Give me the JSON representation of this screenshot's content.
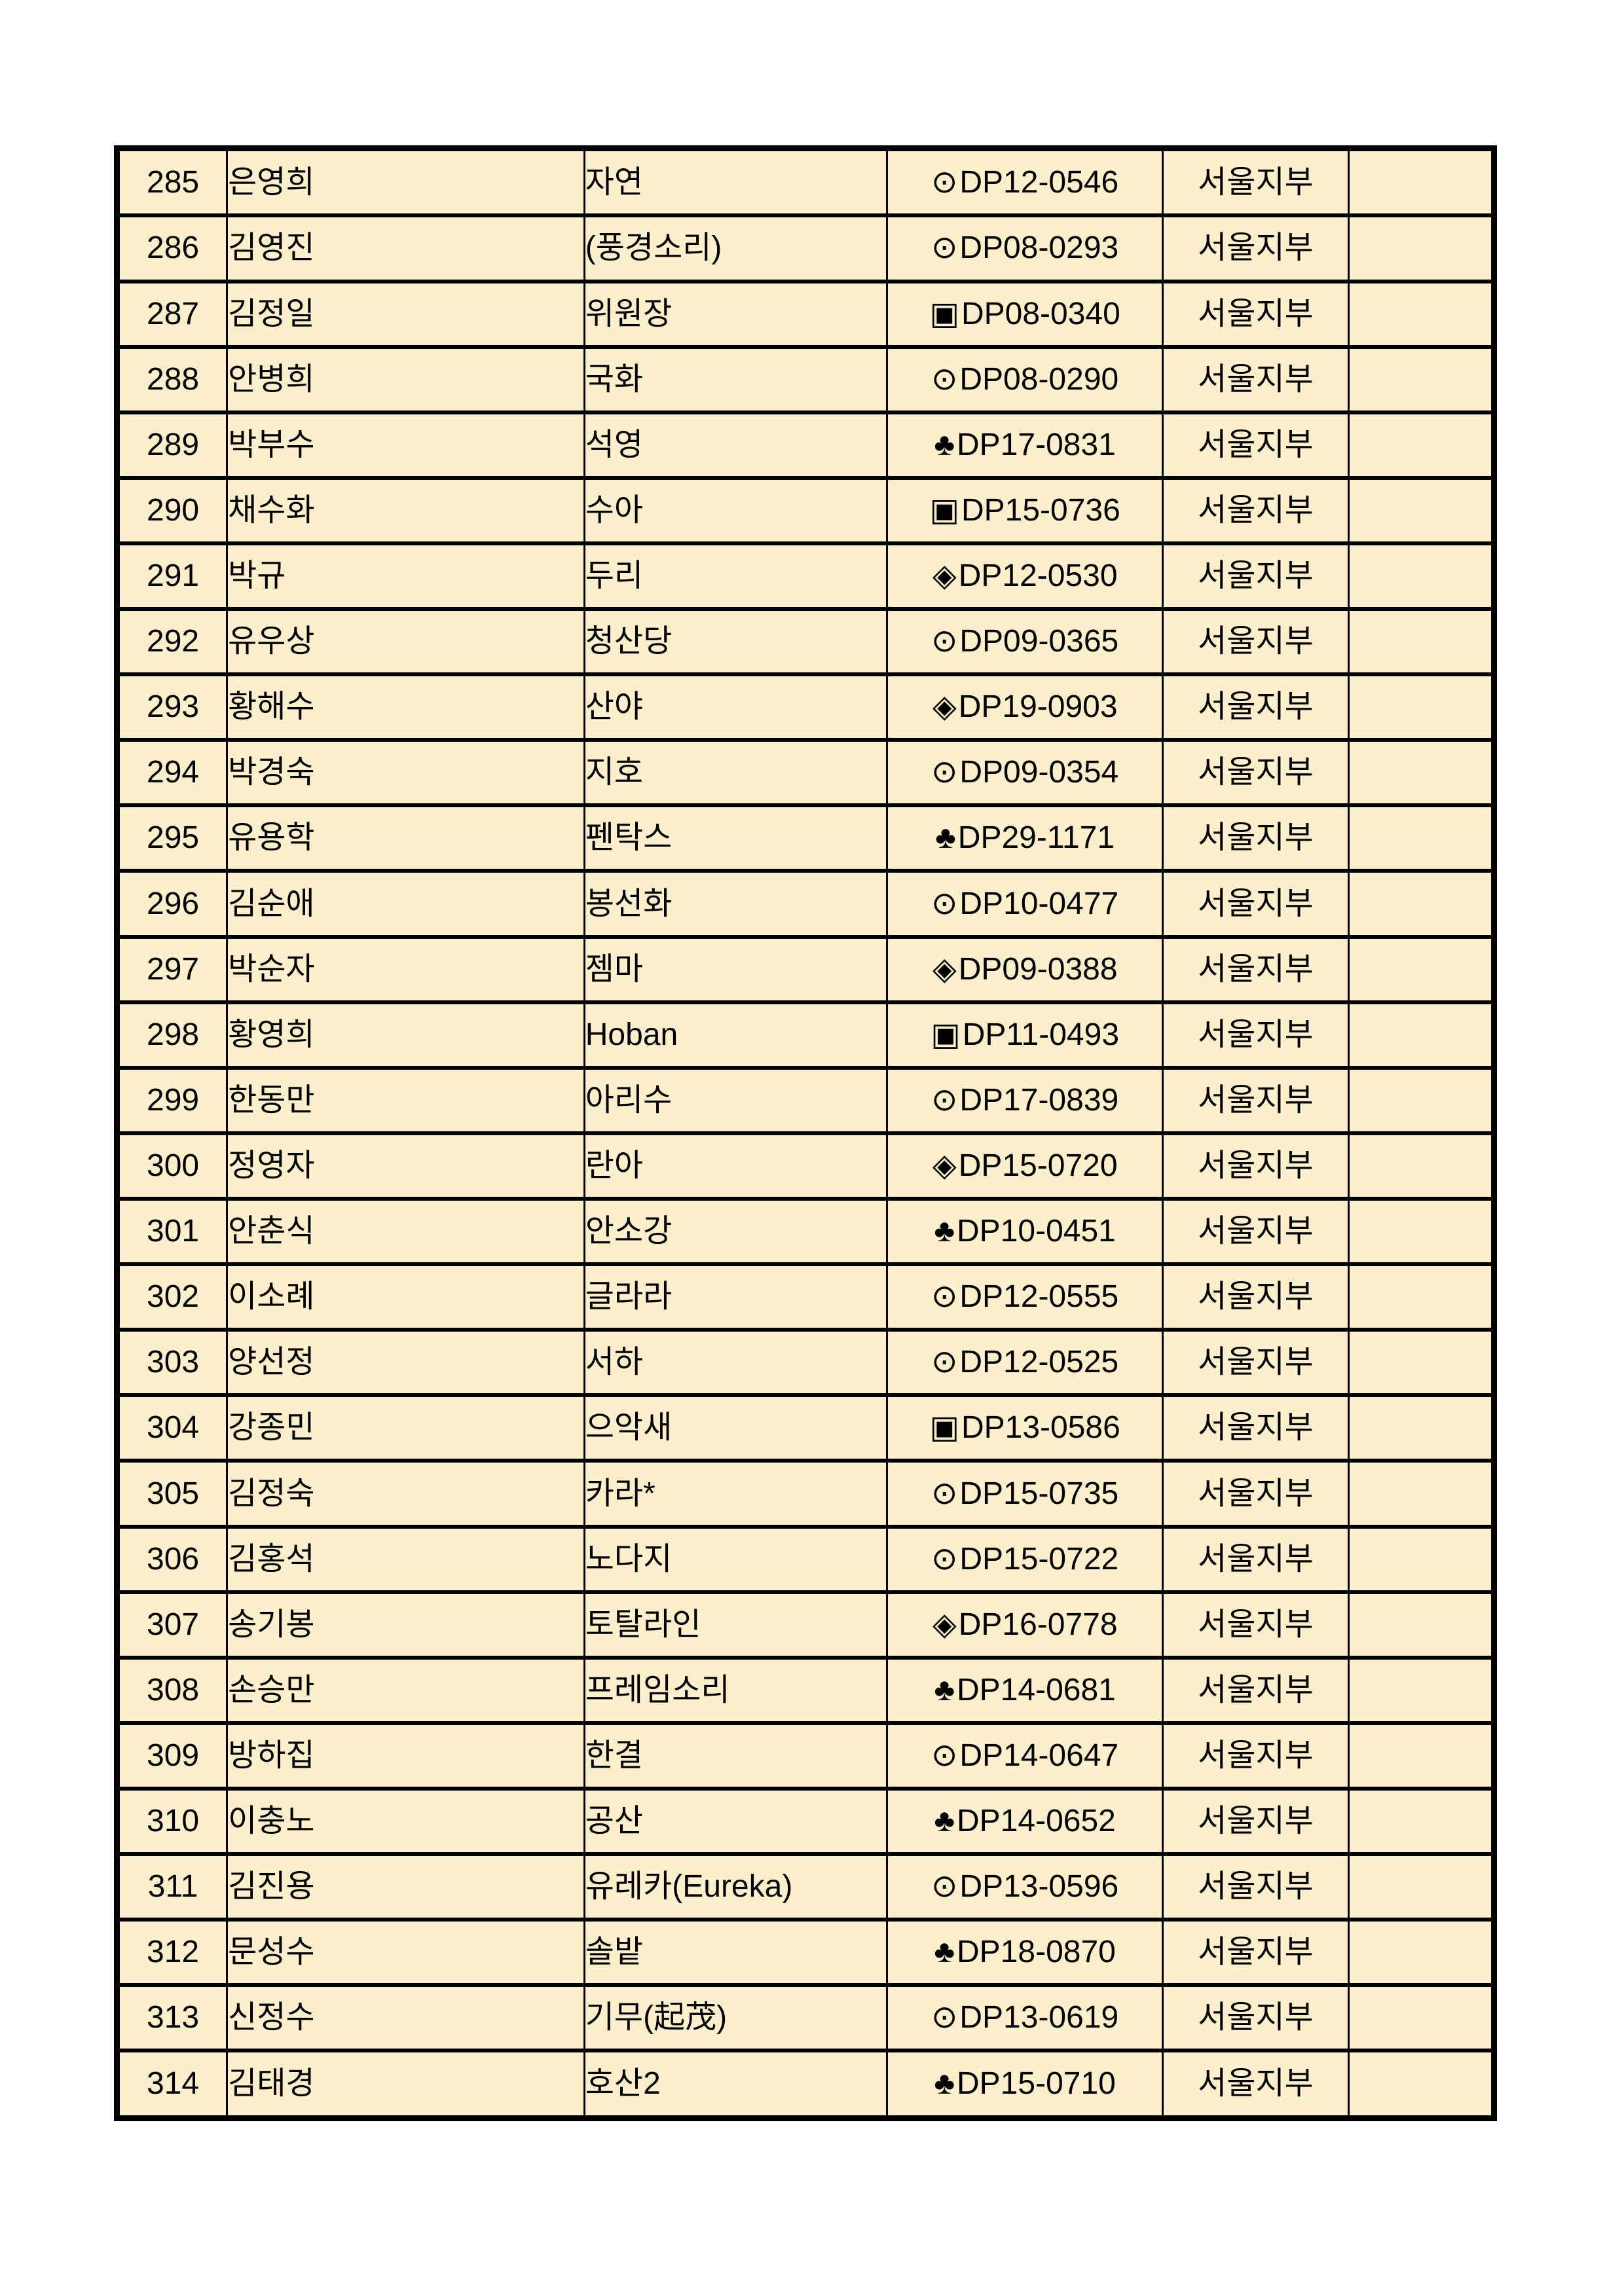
{
  "page": {
    "background_color": "#FFFFFF",
    "table_cell_color": "#FBF0CB",
    "table_border_color": "#000000",
    "grade_marks_used": [
      "⊙",
      "▣",
      "♣",
      "◈"
    ]
  },
  "table": {
    "rows": [
      {
        "no": "285",
        "name": "은영희",
        "alias": "자연",
        "mark": "⊙",
        "code": "DP12-0546",
        "branch": "서울지부",
        "note": ""
      },
      {
        "no": "286",
        "name": "김영진",
        "alias": "(풍경소리)",
        "mark": "⊙",
        "code": "DP08-0293",
        "branch": "서울지부",
        "note": ""
      },
      {
        "no": "287",
        "name": "김정일",
        "alias": "위원장",
        "mark": "▣",
        "code": "DP08-0340",
        "branch": "서울지부",
        "note": ""
      },
      {
        "no": "288",
        "name": "안병희",
        "alias": "국화",
        "mark": "⊙",
        "code": "DP08-0290",
        "branch": "서울지부",
        "note": ""
      },
      {
        "no": "289",
        "name": "박부수",
        "alias": "석영",
        "mark": "♣",
        "code": "DP17-0831",
        "branch": "서울지부",
        "note": ""
      },
      {
        "no": "290",
        "name": "채수화",
        "alias": "수아",
        "mark": "▣",
        "code": "DP15-0736",
        "branch": "서울지부",
        "note": ""
      },
      {
        "no": "291",
        "name": "박규",
        "alias": "두리",
        "mark": "◈",
        "code": "DP12-0530",
        "branch": "서울지부",
        "note": ""
      },
      {
        "no": "292",
        "name": "유우상",
        "alias": "청산당",
        "mark": "⊙",
        "code": "DP09-0365",
        "branch": "서울지부",
        "note": ""
      },
      {
        "no": "293",
        "name": "황해수",
        "alias": "산야",
        "mark": "◈",
        "code": "DP19-0903",
        "branch": "서울지부",
        "note": ""
      },
      {
        "no": "294",
        "name": "박경숙",
        "alias": "지호",
        "mark": "⊙",
        "code": "DP09-0354",
        "branch": "서울지부",
        "note": ""
      },
      {
        "no": "295",
        "name": "유용학",
        "alias": "펜탁스",
        "mark": "♣",
        "code": "DP29-1171",
        "branch": "서울지부",
        "note": ""
      },
      {
        "no": "296",
        "name": "김순애",
        "alias": "봉선화",
        "mark": "⊙",
        "code": "DP10-0477",
        "branch": "서울지부",
        "note": ""
      },
      {
        "no": "297",
        "name": "박순자",
        "alias": "젬마",
        "mark": "◈",
        "code": "DP09-0388",
        "branch": "서울지부",
        "note": ""
      },
      {
        "no": "298",
        "name": "황영희",
        "alias": "Hoban",
        "mark": "▣",
        "code": "DP11-0493",
        "branch": "서울지부",
        "note": ""
      },
      {
        "no": "299",
        "name": "한동만",
        "alias": "아리수",
        "mark": "⊙",
        "code": "DP17-0839",
        "branch": "서울지부",
        "note": ""
      },
      {
        "no": "300",
        "name": "정영자",
        "alias": "란아",
        "mark": "◈",
        "code": "DP15-0720",
        "branch": "서울지부",
        "note": ""
      },
      {
        "no": "301",
        "name": "안춘식",
        "alias": "안소강",
        "mark": "♣",
        "code": "DP10-0451",
        "branch": "서울지부",
        "note": ""
      },
      {
        "no": "302",
        "name": "이소례",
        "alias": "글라라",
        "mark": "⊙",
        "code": "DP12-0555",
        "branch": "서울지부",
        "note": ""
      },
      {
        "no": "303",
        "name": "양선정",
        "alias": "서하",
        "mark": "⊙",
        "code": "DP12-0525",
        "branch": "서울지부",
        "note": ""
      },
      {
        "no": "304",
        "name": "강종민",
        "alias": "으악새",
        "mark": "▣",
        "code": "DP13-0586",
        "branch": "서울지부",
        "note": ""
      },
      {
        "no": "305",
        "name": "김정숙",
        "alias": "카라*",
        "mark": "⊙",
        "code": "DP15-0735",
        "branch": "서울지부",
        "note": ""
      },
      {
        "no": "306",
        "name": "김홍석",
        "alias": "노다지",
        "mark": "⊙",
        "code": "DP15-0722",
        "branch": "서울지부",
        "note": ""
      },
      {
        "no": "307",
        "name": "송기봉",
        "alias": "토탈라인",
        "mark": "◈",
        "code": "DP16-0778",
        "branch": "서울지부",
        "note": ""
      },
      {
        "no": "308",
        "name": "손승만",
        "alias": "프레임소리",
        "mark": "♣",
        "code": "DP14-0681",
        "branch": "서울지부",
        "note": ""
      },
      {
        "no": "309",
        "name": "방하집",
        "alias": "한결",
        "mark": "⊙",
        "code": "DP14-0647",
        "branch": "서울지부",
        "note": ""
      },
      {
        "no": "310",
        "name": "이충노",
        "alias": "공산",
        "mark": "♣",
        "code": "DP14-0652",
        "branch": "서울지부",
        "note": ""
      },
      {
        "no": "311",
        "name": "김진용",
        "alias": "유레카(Eureka)",
        "mark": "⊙",
        "code": "DP13-0596",
        "branch": "서울지부",
        "note": ""
      },
      {
        "no": "312",
        "name": "문성수",
        "alias": "솔밭",
        "mark": "♣",
        "code": "DP18-0870",
        "branch": "서울지부",
        "note": ""
      },
      {
        "no": "313",
        "name": "신정수",
        "alias": "기무(起茂)",
        "mark": "⊙",
        "code": "DP13-0619",
        "branch": "서울지부",
        "note": ""
      },
      {
        "no": "314",
        "name": "김태경",
        "alias": "호산2",
        "mark": "♣",
        "code": "DP15-0710",
        "branch": "서울지부",
        "note": ""
      }
    ]
  }
}
